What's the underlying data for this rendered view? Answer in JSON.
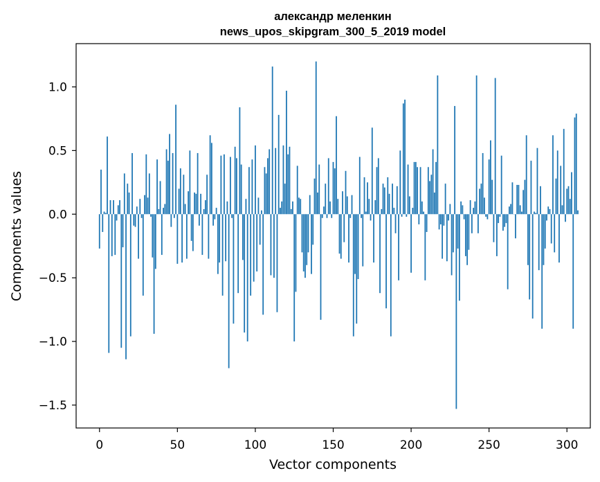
{
  "chart_data": {
    "type": "bar",
    "title_line1": "александр меленкин",
    "title_line2": "news_upos_skipgram_300_5_2019 model",
    "xlabel": "Vector components",
    "ylabel": "Components values",
    "xlim": [
      -15,
      315
    ],
    "ylim": [
      -1.68,
      1.34
    ],
    "xticks": [
      0,
      50,
      100,
      150,
      200,
      250,
      300
    ],
    "xtick_labels": [
      "0",
      "50",
      "100",
      "150",
      "200",
      "250",
      "300"
    ],
    "yticks": [
      -1.5,
      -1.0,
      -0.5,
      0.0,
      0.5,
      1.0
    ],
    "ytick_labels": [
      "−1.5",
      "−1.0",
      "−0.5",
      "0.0",
      "0.5",
      "1.0"
    ],
    "bar_color": "#1f77b4",
    "values": [
      -0.27,
      0.35,
      -0.14,
      0.02,
      0.01,
      0.61,
      -1.09,
      0.11,
      -0.33,
      0.11,
      -0.32,
      -0.05,
      0.07,
      0.11,
      -1.05,
      -0.26,
      0.32,
      -1.14,
      0.24,
      0.17,
      -0.96,
      0.48,
      -0.09,
      -0.1,
      0.06,
      -0.35,
      0.12,
      -0.03,
      -0.64,
      0.15,
      0.47,
      0.13,
      0.32,
      -0.02,
      -0.34,
      -0.94,
      -0.43,
      0.43,
      0.04,
      0.26,
      -0.32,
      0.05,
      0.08,
      0.51,
      0.42,
      0.63,
      -0.1,
      0.48,
      -0.03,
      0.86,
      -0.39,
      0.2,
      0.36,
      -0.38,
      0.31,
      0.08,
      -0.35,
      0.18,
      0.5,
      -0.21,
      -0.29,
      0.17,
      0.16,
      0.48,
      -0.09,
      0.16,
      -0.32,
      0.04,
      0.11,
      0.31,
      -0.35,
      0.62,
      0.56,
      -0.09,
      -0.04,
      0.05,
      -0.47,
      -0.38,
      0.46,
      -0.64,
      0.47,
      -0.37,
      0.1,
      -1.21,
      0.45,
      -0.03,
      -0.86,
      0.53,
      0.44,
      -0.62,
      0.84,
      0.39,
      -0.36,
      -0.93,
      0.12,
      -1.0,
      0.37,
      -0.64,
      0.43,
      -0.53,
      0.54,
      -0.45,
      0.13,
      -0.24,
      0.03,
      -0.79,
      0.37,
      0.32,
      0.44,
      0.51,
      -0.48,
      1.16,
      -0.5,
      0.52,
      -0.77,
      0.78,
      0.05,
      0.1,
      0.54,
      0.24,
      0.97,
      0.47,
      0.53,
      0.04,
      0.1,
      -1.0,
      -0.61,
      0.38,
      0.13,
      0.12,
      -0.3,
      -0.45,
      -0.5,
      -0.4,
      -0.3,
      0.15,
      -0.47,
      -0.24,
      0.28,
      1.2,
      0.17,
      0.39,
      -0.83,
      -0.03,
      0.06,
      0.24,
      -0.03,
      0.44,
      0.1,
      -0.03,
      0.41,
      0.36,
      0.77,
      0.12,
      -0.31,
      -0.35,
      0.18,
      -0.22,
      0.34,
      0.14,
      -0.38,
      -0.03,
      0.15,
      -0.96,
      -0.47,
      -0.86,
      -0.51,
      0.45,
      -0.03,
      -0.41,
      0.29,
      0.02,
      0.25,
      0.12,
      -0.05,
      0.68,
      -0.38,
      0.11,
      0.37,
      0.44,
      -0.62,
      0.04,
      0.24,
      0.21,
      -0.74,
      0.29,
      0.16,
      -0.96,
      0.24,
      0.05,
      -0.15,
      0.22,
      -0.52,
      0.5,
      -0.02,
      0.87,
      0.9,
      -0.02,
      0.39,
      0.14,
      -0.46,
      0.05,
      0.41,
      0.41,
      0.37,
      -0.08,
      0.37,
      0.1,
      0.02,
      -0.52,
      -0.14,
      0.37,
      0.26,
      0.31,
      0.51,
      0.17,
      0.41,
      1.09,
      -0.12,
      -0.08,
      -0.35,
      -0.09,
      0.24,
      -0.37,
      -0.05,
      0.08,
      -0.48,
      -0.3,
      0.85,
      -1.53,
      -0.27,
      -0.68,
      0.1,
      0.07,
      -0.04,
      -0.33,
      -0.4,
      -0.28,
      0.11,
      -0.15,
      0.05,
      0.1,
      1.09,
      -0.15,
      0.2,
      0.24,
      0.48,
      0.13,
      -0.02,
      -0.04,
      0.43,
      0.58,
      0.27,
      -0.22,
      1.07,
      -0.33,
      -0.07,
      -0.02,
      0.46,
      -0.13,
      -0.1,
      -0.07,
      -0.59,
      0.06,
      0.08,
      0.25,
      0.0,
      -0.19,
      0.23,
      0.23,
      0.07,
      0.02,
      0.19,
      0.27,
      0.62,
      -0.4,
      -0.67,
      0.42,
      -0.82,
      0.02,
      0.01,
      0.52,
      -0.44,
      0.22,
      -0.9,
      -0.4,
      -0.27,
      -0.05,
      0.06,
      0.04,
      -0.23,
      0.62,
      -0.3,
      0.28,
      0.5,
      -0.38,
      0.38,
      0.07,
      0.67,
      -0.06,
      0.2,
      0.22,
      0.12,
      0.33,
      -0.9,
      0.76,
      0.79,
      0.03
    ]
  }
}
